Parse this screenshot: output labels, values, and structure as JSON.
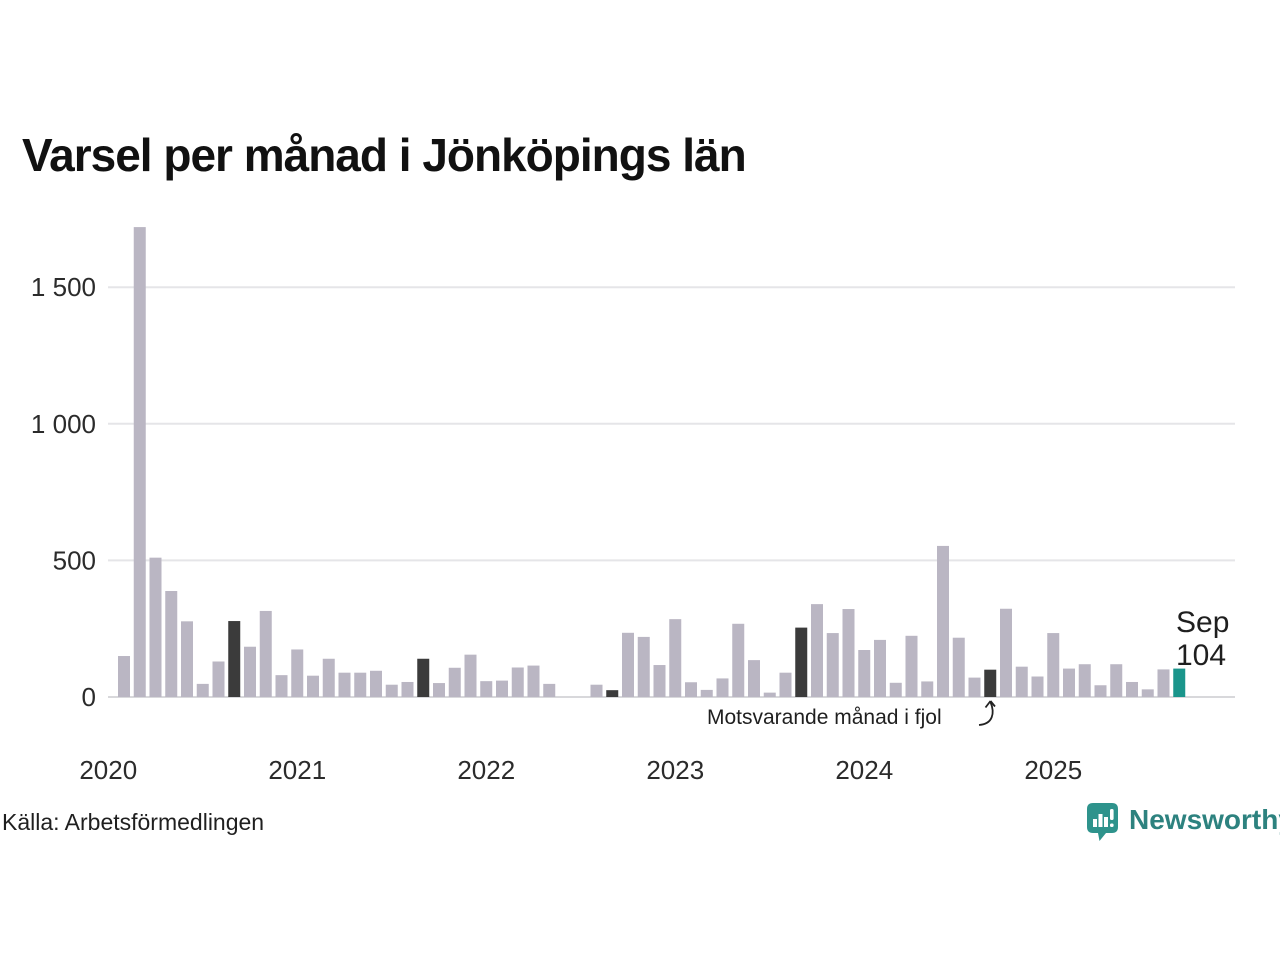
{
  "header": {
    "title": "Varsel per månad i Jönköpings län"
  },
  "footer": {
    "source": "Källa: Arbetsförmedlingen",
    "logo_text": "Newsworthy"
  },
  "annotations": {
    "compare_label": "Motsvarande månad i fjol",
    "current_point": {
      "month": "Sep",
      "value": "104"
    }
  },
  "chart_data": {
    "type": "bar",
    "title": "Varsel per månad i Jönköpings län",
    "xlabel": "",
    "ylabel": "",
    "ylim": [
      0,
      1750
    ],
    "grid": "horizontal-only",
    "legend": "none",
    "yticks": [
      {
        "value": 0,
        "label": "0"
      },
      {
        "value": 500,
        "label": "500"
      },
      {
        "value": 1000,
        "label": "1 000"
      },
      {
        "value": 1500,
        "label": "1 500"
      }
    ],
    "years": [
      "2020",
      "2021",
      "2022",
      "2023",
      "2024",
      "2025"
    ],
    "colors": {
      "normal": "#bab6c3",
      "compare": "#3b3b3b",
      "current": "#1a958b"
    },
    "series": [
      {
        "m": "2020-02",
        "v": 150,
        "role": "normal"
      },
      {
        "m": "2020-03",
        "v": 1720,
        "role": "normal"
      },
      {
        "m": "2020-04",
        "v": 510,
        "role": "normal"
      },
      {
        "m": "2020-05",
        "v": 388,
        "role": "normal"
      },
      {
        "m": "2020-06",
        "v": 277,
        "role": "normal"
      },
      {
        "m": "2020-07",
        "v": 48,
        "role": "normal"
      },
      {
        "m": "2020-08",
        "v": 130,
        "role": "normal"
      },
      {
        "m": "2020-09",
        "v": 278,
        "role": "compare"
      },
      {
        "m": "2020-10",
        "v": 184,
        "role": "normal"
      },
      {
        "m": "2020-11",
        "v": 315,
        "role": "normal"
      },
      {
        "m": "2020-12",
        "v": 80,
        "role": "normal"
      },
      {
        "m": "2021-01",
        "v": 174,
        "role": "normal"
      },
      {
        "m": "2021-02",
        "v": 78,
        "role": "normal"
      },
      {
        "m": "2021-03",
        "v": 140,
        "role": "normal"
      },
      {
        "m": "2021-04",
        "v": 89,
        "role": "normal"
      },
      {
        "m": "2021-05",
        "v": 89,
        "role": "normal"
      },
      {
        "m": "2021-06",
        "v": 96,
        "role": "normal"
      },
      {
        "m": "2021-07",
        "v": 45,
        "role": "normal"
      },
      {
        "m": "2021-08",
        "v": 55,
        "role": "normal"
      },
      {
        "m": "2021-09",
        "v": 140,
        "role": "compare"
      },
      {
        "m": "2021-10",
        "v": 51,
        "role": "normal"
      },
      {
        "m": "2021-11",
        "v": 107,
        "role": "normal"
      },
      {
        "m": "2021-12",
        "v": 155,
        "role": "normal"
      },
      {
        "m": "2022-01",
        "v": 58,
        "role": "normal"
      },
      {
        "m": "2022-02",
        "v": 60,
        "role": "normal"
      },
      {
        "m": "2022-03",
        "v": 108,
        "role": "normal"
      },
      {
        "m": "2022-04",
        "v": 115,
        "role": "normal"
      },
      {
        "m": "2022-05",
        "v": 48,
        "role": "normal"
      },
      {
        "m": "2022-06",
        "v": 0,
        "role": "normal"
      },
      {
        "m": "2022-07",
        "v": 0,
        "role": "normal"
      },
      {
        "m": "2022-08",
        "v": 45,
        "role": "normal"
      },
      {
        "m": "2022-09",
        "v": 25,
        "role": "compare"
      },
      {
        "m": "2022-10",
        "v": 235,
        "role": "normal"
      },
      {
        "m": "2022-11",
        "v": 220,
        "role": "normal"
      },
      {
        "m": "2022-12",
        "v": 117,
        "role": "normal"
      },
      {
        "m": "2023-01",
        "v": 285,
        "role": "normal"
      },
      {
        "m": "2023-02",
        "v": 54,
        "role": "normal"
      },
      {
        "m": "2023-03",
        "v": 26,
        "role": "normal"
      },
      {
        "m": "2023-04",
        "v": 68,
        "role": "normal"
      },
      {
        "m": "2023-05",
        "v": 268,
        "role": "normal"
      },
      {
        "m": "2023-06",
        "v": 135,
        "role": "normal"
      },
      {
        "m": "2023-07",
        "v": 16,
        "role": "normal"
      },
      {
        "m": "2023-08",
        "v": 89,
        "role": "normal"
      },
      {
        "m": "2023-09",
        "v": 254,
        "role": "compare"
      },
      {
        "m": "2023-10",
        "v": 340,
        "role": "normal"
      },
      {
        "m": "2023-11",
        "v": 234,
        "role": "normal"
      },
      {
        "m": "2023-12",
        "v": 322,
        "role": "normal"
      },
      {
        "m": "2024-01",
        "v": 172,
        "role": "normal"
      },
      {
        "m": "2024-02",
        "v": 209,
        "role": "normal"
      },
      {
        "m": "2024-03",
        "v": 52,
        "role": "normal"
      },
      {
        "m": "2024-04",
        "v": 224,
        "role": "normal"
      },
      {
        "m": "2024-05",
        "v": 57,
        "role": "normal"
      },
      {
        "m": "2024-06",
        "v": 553,
        "role": "normal"
      },
      {
        "m": "2024-07",
        "v": 217,
        "role": "normal"
      },
      {
        "m": "2024-08",
        "v": 71,
        "role": "normal"
      },
      {
        "m": "2024-09",
        "v": 100,
        "role": "compare"
      },
      {
        "m": "2024-10",
        "v": 323,
        "role": "normal"
      },
      {
        "m": "2024-11",
        "v": 111,
        "role": "normal"
      },
      {
        "m": "2024-12",
        "v": 75,
        "role": "normal"
      },
      {
        "m": "2025-01",
        "v": 234,
        "role": "normal"
      },
      {
        "m": "2025-02",
        "v": 104,
        "role": "normal"
      },
      {
        "m": "2025-03",
        "v": 120,
        "role": "normal"
      },
      {
        "m": "2025-04",
        "v": 43,
        "role": "normal"
      },
      {
        "m": "2025-05",
        "v": 120,
        "role": "normal"
      },
      {
        "m": "2025-06",
        "v": 55,
        "role": "normal"
      },
      {
        "m": "2025-07",
        "v": 28,
        "role": "normal"
      },
      {
        "m": "2025-08",
        "v": 101,
        "role": "normal"
      },
      {
        "m": "2025-09",
        "v": 104,
        "role": "current"
      }
    ]
  }
}
